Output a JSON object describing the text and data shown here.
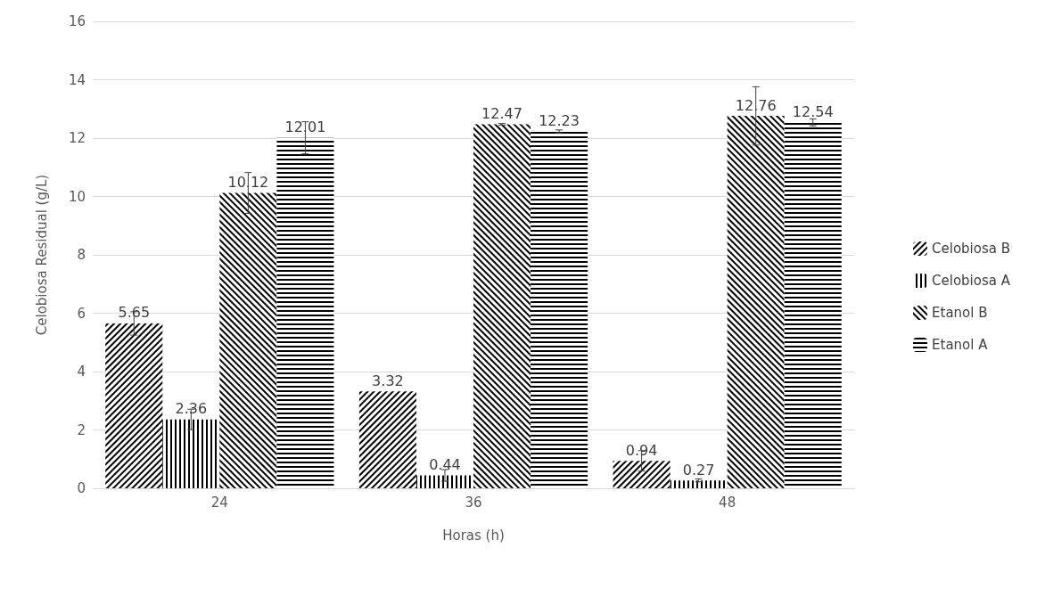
{
  "chart_data": {
    "type": "bar",
    "xlabel": "Horas (h)",
    "ylabel": "Celobiosa Residual (g/L)",
    "categories": [
      "24",
      "36",
      "48"
    ],
    "series": [
      {
        "name": "Celobiosa B",
        "color": "#000000",
        "values": [
          5.65,
          3.32,
          0.94
        ],
        "errors": [
          0.4,
          null,
          0.35
        ]
      },
      {
        "name": "Celobiosa A",
        "color": "#000000",
        "values": [
          2.36,
          0.44,
          0.27
        ],
        "errors": [
          0.35,
          0.2,
          0.05
        ]
      },
      {
        "name": "Etanol B",
        "color": "#000000",
        "values": [
          10.12,
          12.47,
          12.76
        ],
        "errors": [
          0.7,
          0.03,
          1.0
        ]
      },
      {
        "name": "Etanol A",
        "color": "#000000",
        "values": [
          12.01,
          12.23,
          12.54
        ],
        "errors": [
          0.55,
          0.05,
          0.12
        ]
      }
    ],
    "ylim": [
      0,
      16
    ],
    "yticks": [
      0,
      2,
      4,
      6,
      8,
      10,
      12,
      14,
      16
    ],
    "grid": "y",
    "legend": "right",
    "data_labels": true
  }
}
